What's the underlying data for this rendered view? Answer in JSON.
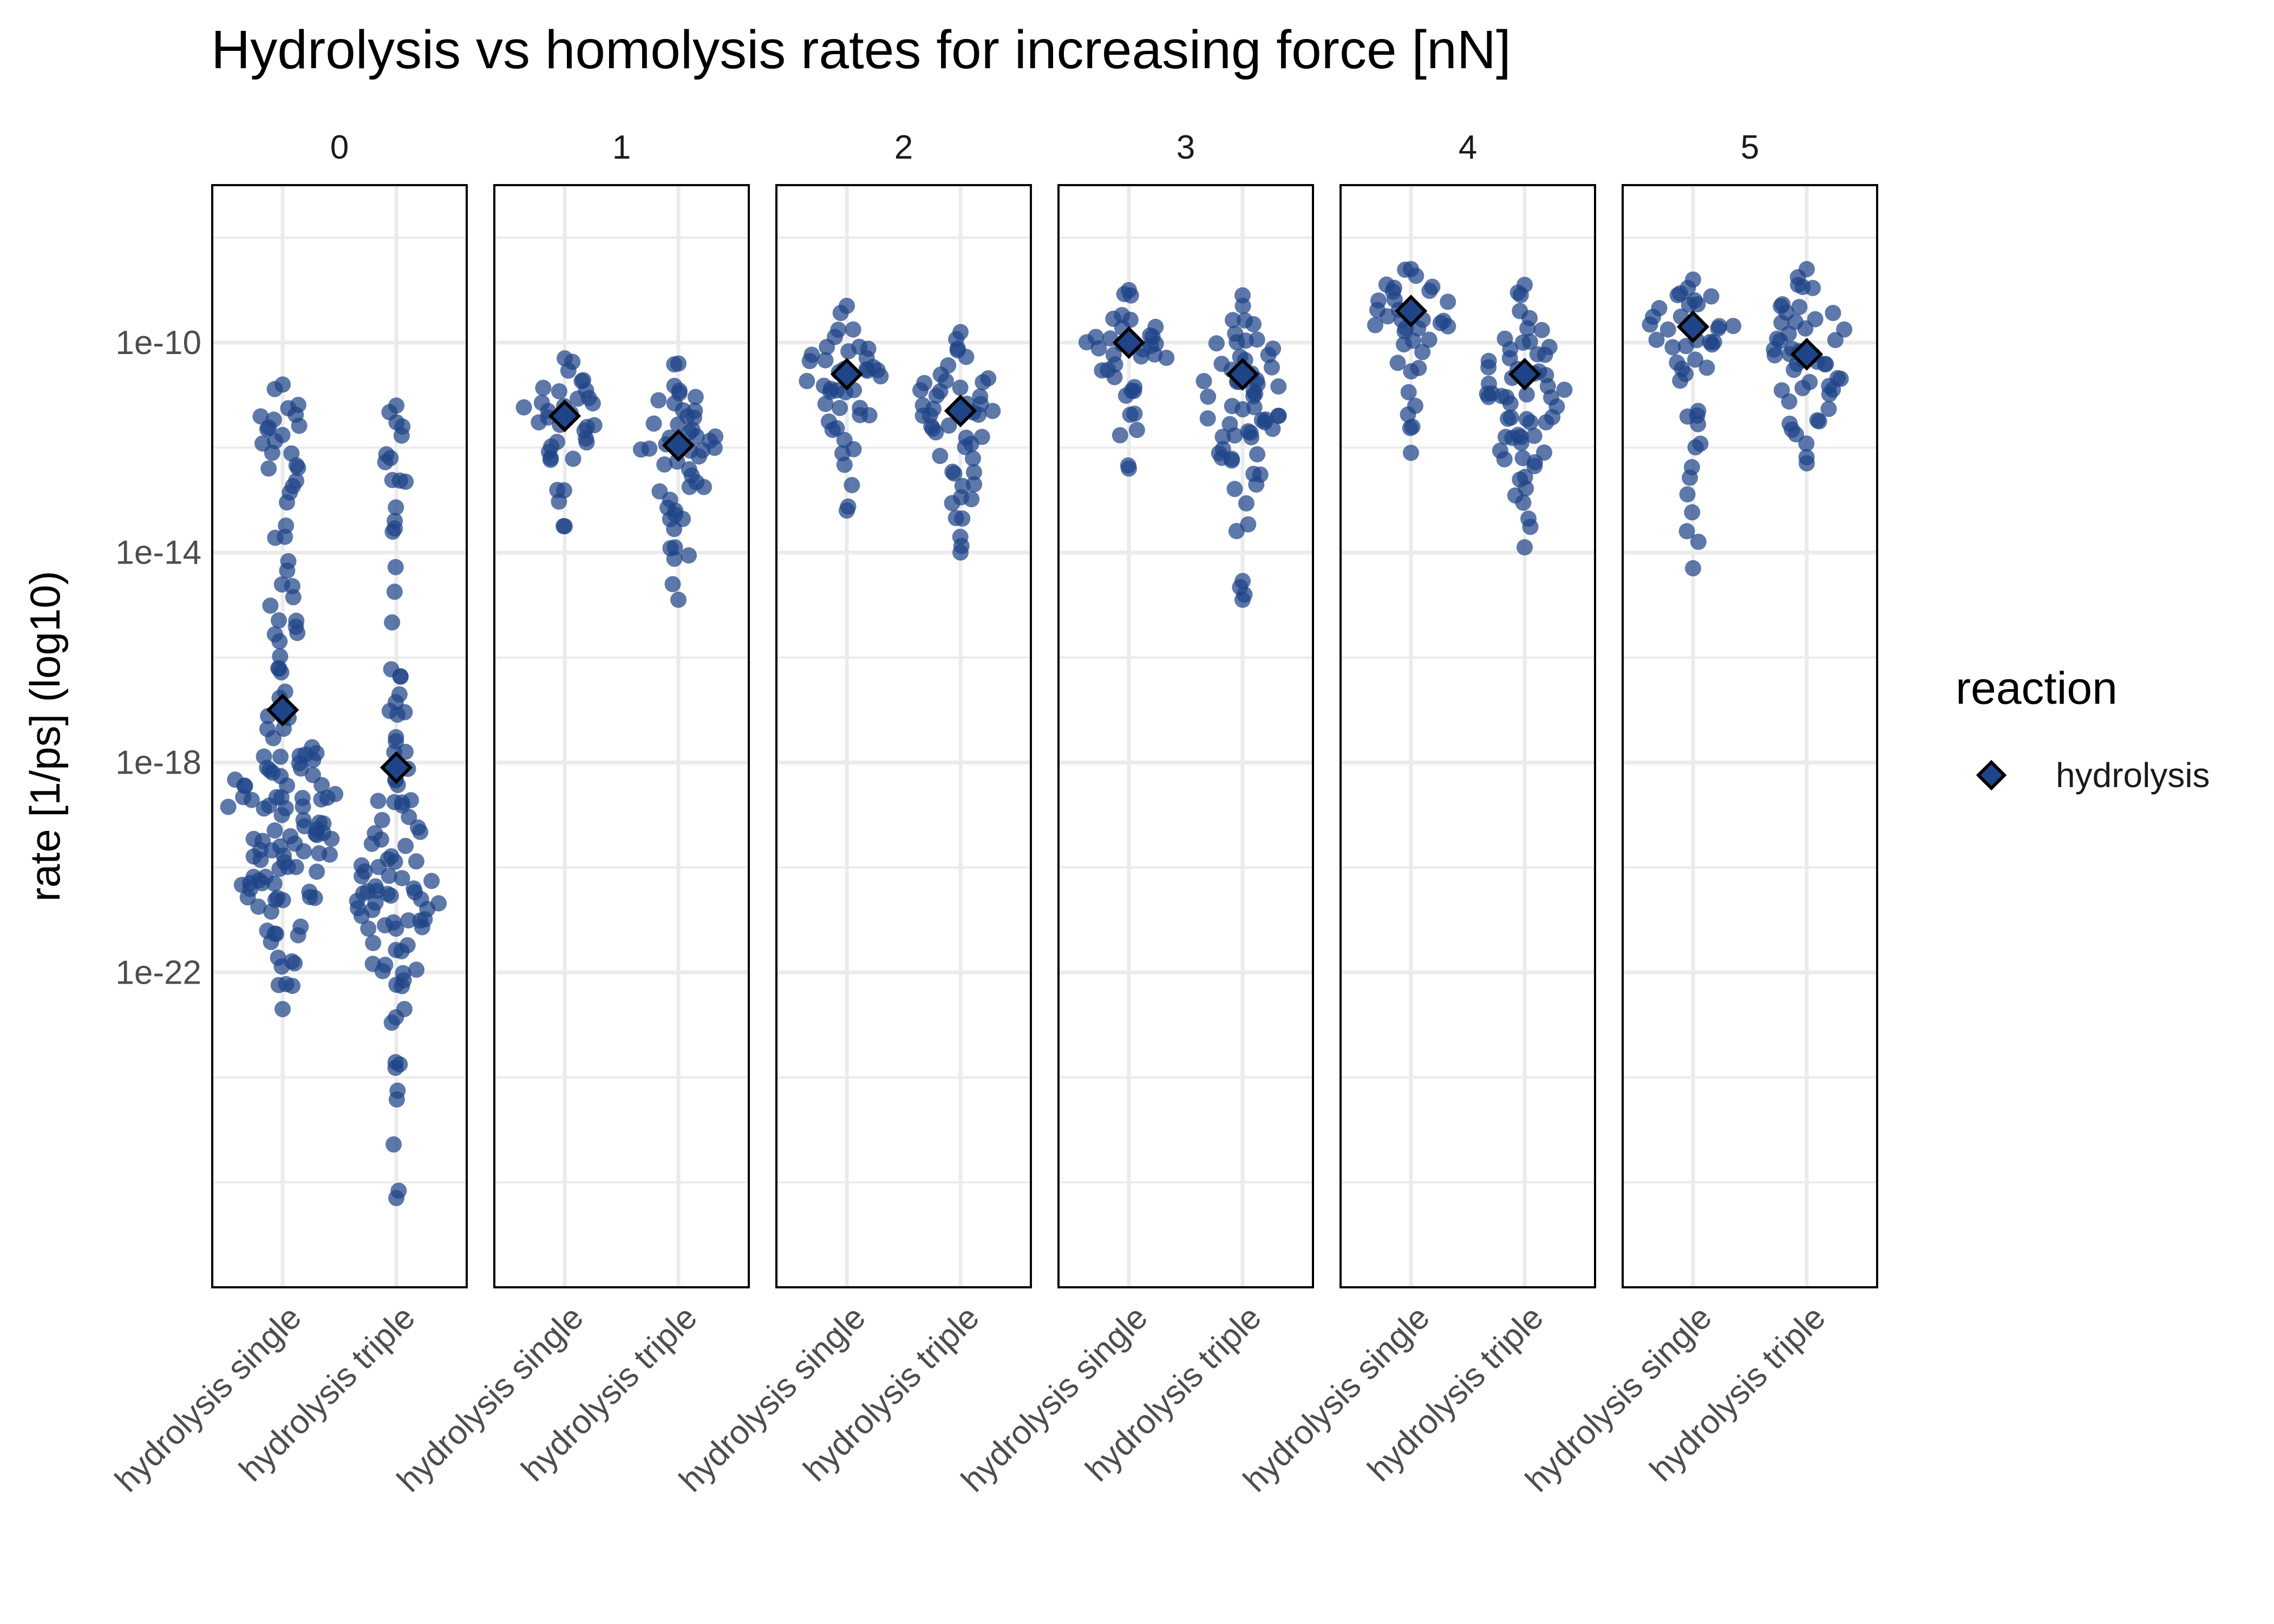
{
  "chart_data": {
    "type": "scatter",
    "subtype": "beeswarm (faceted) with mean markers",
    "title": "Hydrolysis vs homolysis rates for increasing force [nN]",
    "ylabel": "rate [1/ps] (log10)",
    "xlabel": "",
    "y_scale": "log10",
    "ylim": [
      1e-28,
      1e-07
    ],
    "y_ticks": [
      {
        "value": 1e-10,
        "label": "1e-10"
      },
      {
        "value": 1e-14,
        "label": "1e-14"
      },
      {
        "value": 1e-18,
        "label": "1e-18"
      },
      {
        "value": 1e-22,
        "label": "1e-22"
      }
    ],
    "y_minor_gridlines": [
      1e-08,
      1e-12,
      1e-16,
      1e-20,
      1e-24,
      1e-26
    ],
    "categories": [
      "hydrolysis single",
      "hydrolysis triple"
    ],
    "facets": [
      {
        "label": "0",
        "groups": [
          {
            "category": "hydrolysis single",
            "mean": 1e-17,
            "distribution": [
              [
                -22.7,
                0.2
              ],
              [
                -22,
                0.6
              ],
              [
                -21,
                1.3
              ],
              [
                -20,
                2.2
              ],
              [
                -19.5,
                2.6
              ],
              [
                -19,
                2.6
              ],
              [
                -18.5,
                2.4
              ],
              [
                -18,
                1.9
              ],
              [
                -17.5,
                1.1
              ],
              [
                -17,
                0.6
              ],
              [
                -16.5,
                0.4
              ],
              [
                -16,
                0.6
              ],
              [
                -15.5,
                0.8
              ],
              [
                -15,
                0.6
              ],
              [
                -14.5,
                0.4
              ],
              [
                -14,
                0.3
              ],
              [
                -13.5,
                0.5
              ],
              [
                -13,
                0.4
              ],
              [
                -12.5,
                0.8
              ],
              [
                -12,
                1.1
              ],
              [
                -11.5,
                1.2
              ],
              [
                -11,
                0.7
              ],
              [
                -10.8,
                0.3
              ]
            ]
          },
          {
            "category": "hydrolysis triple",
            "mean": 8e-19,
            "distribution": [
              [
                -26.3,
                0.1
              ],
              [
                -23.1,
                0.3
              ],
              [
                -22.5,
                0.5
              ],
              [
                -22,
                0.9
              ],
              [
                -21.5,
                1.5
              ],
              [
                -21,
                1.9
              ],
              [
                -20.5,
                2.1
              ],
              [
                -20,
                1.8
              ],
              [
                -19.5,
                1.3
              ],
              [
                -19,
                1
              ],
              [
                -18.5,
                0.8
              ],
              [
                -18,
                0.7
              ],
              [
                -17.5,
                0.6
              ],
              [
                -17,
                0.4
              ],
              [
                -16.5,
                0.3
              ],
              [
                -15.5,
                0.2
              ],
              [
                -14.5,
                0.2
              ],
              [
                -13.5,
                0.3
              ],
              [
                -13,
                0.5
              ],
              [
                -12.5,
                0.5
              ],
              [
                -12,
                0.6
              ],
              [
                -11.5,
                0.4
              ],
              [
                -11.2,
                0.3
              ]
            ]
          }
        ]
      },
      {
        "label": "1",
        "groups": [
          {
            "category": "hydrolysis single",
            "mean": 4e-12,
            "distribution": [
              [
                -13.5,
                0.2
              ],
              [
                -13,
                0.4
              ],
              [
                -12.5,
                0.5
              ],
              [
                -12,
                0.8
              ],
              [
                -11.7,
                1.6
              ],
              [
                -11.4,
                2.1
              ],
              [
                -11.1,
                1.9
              ],
              [
                -10.8,
                1.2
              ],
              [
                -10.5,
                0.7
              ],
              [
                -10.3,
                0.4
              ]
            ]
          },
          {
            "category": "hydrolysis triple",
            "mean": 1.1e-12,
            "distribution": [
              [
                -14.9,
                0.2
              ],
              [
                -14.5,
                0.3
              ],
              [
                -14,
                0.5
              ],
              [
                -13.5,
                0.7
              ],
              [
                -13,
                1
              ],
              [
                -12.5,
                1.4
              ],
              [
                -12,
                1.8
              ],
              [
                -11.7,
                1.9
              ],
              [
                -11.4,
                1.5
              ],
              [
                -11,
                0.9
              ],
              [
                -10.6,
                0.4
              ],
              [
                -10.4,
                0.2
              ]
            ]
          }
        ]
      },
      {
        "label": "2",
        "groups": [
          {
            "category": "hydrolysis single",
            "mean": 2.5e-11,
            "distribution": [
              [
                -13.2,
                0.2
              ],
              [
                -12.5,
                0.4
              ],
              [
                -12,
                0.6
              ],
              [
                -11.6,
                0.9
              ],
              [
                -11.2,
                1.3
              ],
              [
                -10.8,
                1.9
              ],
              [
                -10.5,
                2.1
              ],
              [
                -10.2,
                1.6
              ],
              [
                -9.9,
                1
              ],
              [
                -9.6,
                0.6
              ],
              [
                -9.3,
                0.3
              ]
            ]
          },
          {
            "category": "hydrolysis triple",
            "mean": 5e-12,
            "distribution": [
              [
                -14,
                0.2
              ],
              [
                -13.5,
                0.4
              ],
              [
                -13,
                0.6
              ],
              [
                -12.5,
                0.8
              ],
              [
                -12,
                1.2
              ],
              [
                -11.6,
                1.7
              ],
              [
                -11.2,
                2
              ],
              [
                -10.8,
                1.8
              ],
              [
                -10.4,
                1.2
              ],
              [
                -10.1,
                0.6
              ],
              [
                -9.8,
                0.3
              ]
            ]
          }
        ]
      },
      {
        "label": "3",
        "groups": [
          {
            "category": "hydrolysis single",
            "mean": 1e-10,
            "distribution": [
              [
                -12.4,
                0.2
              ],
              [
                -12,
                0.4
              ],
              [
                -11.5,
                0.5
              ],
              [
                -11,
                0.6
              ],
              [
                -10.6,
                1.2
              ],
              [
                -10.2,
                2.1
              ],
              [
                -9.9,
                2
              ],
              [
                -9.6,
                1.2
              ],
              [
                -9.3,
                0.7
              ],
              [
                -9,
                0.4
              ]
            ]
          },
          {
            "category": "hydrolysis triple",
            "mean": 2.5e-11,
            "distribution": [
              [
                -14.9,
                0.1
              ],
              [
                -13.6,
                0.3
              ],
              [
                -13,
                0.6
              ],
              [
                -12.5,
                0.9
              ],
              [
                -12,
                1.3
              ],
              [
                -11.5,
                1.7
              ],
              [
                -11,
                2
              ],
              [
                -10.6,
                2
              ],
              [
                -10.2,
                1.7
              ],
              [
                -9.8,
                1.1
              ],
              [
                -9.4,
                0.5
              ],
              [
                -9.1,
                0.2
              ]
            ]
          }
        ]
      },
      {
        "label": "4",
        "groups": [
          {
            "category": "hydrolysis single",
            "mean": 4e-10,
            "distribution": [
              [
                -12.1,
                0.2
              ],
              [
                -11.5,
                0.3
              ],
              [
                -11,
                0.4
              ],
              [
                -10.5,
                0.5
              ],
              [
                -10,
                1
              ],
              [
                -9.7,
                2
              ],
              [
                -9.4,
                2.2
              ],
              [
                -9.1,
                1.6
              ],
              [
                -8.8,
                1.2
              ],
              [
                -8.6,
                0.6
              ]
            ]
          },
          {
            "category": "hydrolysis triple",
            "mean": 2.5e-11,
            "distribution": [
              [
                -13.9,
                0.2
              ],
              [
                -13.5,
                0.3
              ],
              [
                -13,
                0.5
              ],
              [
                -12.5,
                0.9
              ],
              [
                -12,
                1.3
              ],
              [
                -11.5,
                1.7
              ],
              [
                -11,
                2
              ],
              [
                -10.6,
                2
              ],
              [
                -10.2,
                1.5
              ],
              [
                -9.8,
                1
              ],
              [
                -9.3,
                0.5
              ],
              [
                -8.9,
                0.2
              ]
            ]
          }
        ]
      },
      {
        "label": "5",
        "groups": [
          {
            "category": "hydrolysis single",
            "mean": 2e-10,
            "distribution": [
              [
                -14.3,
                0.2
              ],
              [
                -13.5,
                0.3
              ],
              [
                -12.5,
                0.3
              ],
              [
                -11.8,
                0.4
              ],
              [
                -11,
                0.5
              ],
              [
                -10.4,
                0.8
              ],
              [
                -10,
                1.7
              ],
              [
                -9.7,
                2.1
              ],
              [
                -9.4,
                1.8
              ],
              [
                -9.1,
                1.1
              ],
              [
                -8.8,
                0.5
              ]
            ]
          },
          {
            "category": "hydrolysis triple",
            "mean": 6e-11,
            "distribution": [
              [
                -12.3,
                0.2
              ],
              [
                -12,
                0.5
              ],
              [
                -11.6,
                0.8
              ],
              [
                -11.2,
                1.1
              ],
              [
                -10.8,
                1.5
              ],
              [
                -10.4,
                1.8
              ],
              [
                -10,
                2
              ],
              [
                -9.6,
                1.8
              ],
              [
                -9.2,
                1.2
              ],
              [
                -8.9,
                0.6
              ],
              [
                -8.6,
                0.2
              ]
            ]
          }
        ]
      }
    ],
    "legend": {
      "title": "reaction",
      "position": "right",
      "entries": [
        {
          "label": "hydrolysis",
          "symbol": "diamond"
        }
      ]
    },
    "grid": true,
    "colors": {
      "points": "#1f4488",
      "mean_marker_fill": "#1f4488",
      "mean_marker_edge": "#000000",
      "panel_border": "#000000",
      "grid": "#ebebeb"
    }
  }
}
